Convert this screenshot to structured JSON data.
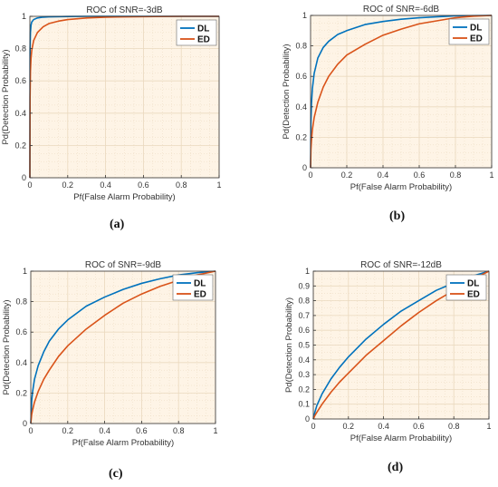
{
  "chart_data": [
    {
      "type": "line",
      "title": "ROC  of SNR=-3dB",
      "xlabel": "Pf(False Alarm Probability)",
      "ylabel": "Pd(Detection Probability)",
      "xlim": [
        0,
        1
      ],
      "ylim": [
        0,
        1
      ],
      "xticks": [
        "0",
        "0.2",
        "0.4",
        "0.6",
        "0.8",
        "1"
      ],
      "yticks": [
        "0",
        "0.2",
        "0.4",
        "0.6",
        "0.8",
        "1"
      ],
      "grid": true,
      "legend_position": "top-right",
      "caption": "(a)",
      "series": [
        {
          "name": "DL",
          "color": "#0072BD",
          "x": [
            0,
            0.001,
            0.003,
            0.006,
            0.01,
            0.02,
            0.04,
            0.07,
            0.1,
            0.2,
            0.3,
            0.5,
            0.7,
            1
          ],
          "y": [
            0,
            0.8,
            0.9,
            0.945,
            0.965,
            0.98,
            0.99,
            0.995,
            0.997,
            0.999,
            1,
            1,
            1,
            1
          ]
        },
        {
          "name": "ED",
          "color": "#D95319",
          "x": [
            0,
            0.001,
            0.003,
            0.006,
            0.01,
            0.02,
            0.04,
            0.07,
            0.1,
            0.15,
            0.2,
            0.3,
            0.4,
            0.6,
            0.8,
            1
          ],
          "y": [
            0,
            0.5,
            0.66,
            0.74,
            0.79,
            0.85,
            0.9,
            0.935,
            0.955,
            0.97,
            0.98,
            0.99,
            0.995,
            0.998,
            1,
            1
          ]
        }
      ]
    },
    {
      "type": "line",
      "title": "ROC  of SNR=-6dB",
      "xlabel": "Pf(False Alarm Probability)",
      "ylabel": "Pd(Detection Probability)",
      "xlim": [
        0,
        1
      ],
      "ylim": [
        0,
        1
      ],
      "xticks": [
        "0",
        "0.2",
        "0.4",
        "0.6",
        "0.8",
        "1"
      ],
      "yticks": [
        "0",
        "0.2",
        "0.4",
        "0.6",
        "0.8",
        "1"
      ],
      "grid": true,
      "legend_position": "top-right",
      "caption": "(b)",
      "series": [
        {
          "name": "DL",
          "color": "#0072BD",
          "x": [
            0,
            0.002,
            0.005,
            0.01,
            0.02,
            0.04,
            0.07,
            0.1,
            0.15,
            0.2,
            0.3,
            0.4,
            0.5,
            0.6,
            0.8,
            1
          ],
          "y": [
            0,
            0.3,
            0.42,
            0.52,
            0.62,
            0.72,
            0.79,
            0.83,
            0.875,
            0.9,
            0.94,
            0.96,
            0.975,
            0.985,
            0.997,
            1
          ]
        },
        {
          "name": "ED",
          "color": "#D95319",
          "x": [
            0,
            0.002,
            0.005,
            0.01,
            0.02,
            0.04,
            0.07,
            0.1,
            0.15,
            0.2,
            0.3,
            0.4,
            0.5,
            0.6,
            0.7,
            0.8,
            0.9,
            1
          ],
          "y": [
            0,
            0.12,
            0.18,
            0.25,
            0.33,
            0.43,
            0.53,
            0.6,
            0.68,
            0.74,
            0.81,
            0.87,
            0.91,
            0.945,
            0.965,
            0.985,
            0.995,
            1
          ]
        }
      ]
    },
    {
      "type": "line",
      "title": "ROC  of SNR=-9dB",
      "xlabel": "Pf(False Alarm Probability)",
      "ylabel": "Pd(Detection Probability)",
      "xlim": [
        0,
        1
      ],
      "ylim": [
        0,
        1
      ],
      "xticks": [
        "0",
        "0.2",
        "0.4",
        "0.6",
        "0.8",
        "1"
      ],
      "yticks": [
        "0",
        "0.2",
        "0.4",
        "0.6",
        "0.8",
        "1"
      ],
      "grid": true,
      "legend_position": "top-right",
      "caption": "(c)",
      "series": [
        {
          "name": "DL",
          "color": "#0072BD",
          "x": [
            0,
            0.005,
            0.01,
            0.02,
            0.04,
            0.07,
            0.1,
            0.15,
            0.2,
            0.3,
            0.4,
            0.5,
            0.6,
            0.7,
            0.8,
            0.9,
            1
          ],
          "y": [
            0,
            0.15,
            0.21,
            0.29,
            0.38,
            0.47,
            0.54,
            0.62,
            0.68,
            0.77,
            0.83,
            0.88,
            0.92,
            0.95,
            0.975,
            0.99,
            1
          ]
        },
        {
          "name": "ED",
          "color": "#D95319",
          "x": [
            0,
            0.005,
            0.01,
            0.02,
            0.04,
            0.07,
            0.1,
            0.15,
            0.2,
            0.3,
            0.4,
            0.5,
            0.6,
            0.7,
            0.8,
            0.9,
            1
          ],
          "y": [
            0,
            0.06,
            0.09,
            0.14,
            0.21,
            0.29,
            0.35,
            0.44,
            0.51,
            0.62,
            0.71,
            0.79,
            0.85,
            0.9,
            0.94,
            0.975,
            1
          ]
        }
      ]
    },
    {
      "type": "line",
      "title": "ROC  of SNR=-12dB",
      "xlabel": "Pf(False Alarm Probability)",
      "ylabel": "Pd(Detection Probability)",
      "xlim": [
        0,
        1
      ],
      "ylim": [
        0,
        1
      ],
      "xticks": [
        "0",
        "0.2",
        "0.4",
        "0.6",
        "0.8",
        "1"
      ],
      "yticks": [
        "0",
        "0.1",
        "0.2",
        "0.3",
        "0.4",
        "0.5",
        "0.6",
        "0.7",
        "0.8",
        "0.9",
        "1"
      ],
      "grid": true,
      "legend_position": "top-right",
      "caption": "(d)",
      "series": [
        {
          "name": "DL",
          "color": "#0072BD",
          "x": [
            0,
            0.01,
            0.02,
            0.05,
            0.1,
            0.15,
            0.2,
            0.3,
            0.4,
            0.5,
            0.6,
            0.7,
            0.8,
            0.9,
            1
          ],
          "y": [
            0,
            0.05,
            0.09,
            0.17,
            0.27,
            0.35,
            0.42,
            0.54,
            0.64,
            0.73,
            0.8,
            0.87,
            0.92,
            0.965,
            1
          ]
        },
        {
          "name": "ED",
          "color": "#D95319",
          "x": [
            0,
            0.01,
            0.02,
            0.05,
            0.1,
            0.15,
            0.2,
            0.3,
            0.4,
            0.5,
            0.6,
            0.7,
            0.8,
            0.9,
            1
          ],
          "y": [
            0,
            0.025,
            0.045,
            0.1,
            0.18,
            0.25,
            0.31,
            0.43,
            0.53,
            0.63,
            0.72,
            0.8,
            0.87,
            0.94,
            1
          ]
        }
      ]
    }
  ],
  "colors": {
    "plot_background": "#FEF4E6",
    "grid": "#EAD9BF",
    "axis": "#333333"
  }
}
